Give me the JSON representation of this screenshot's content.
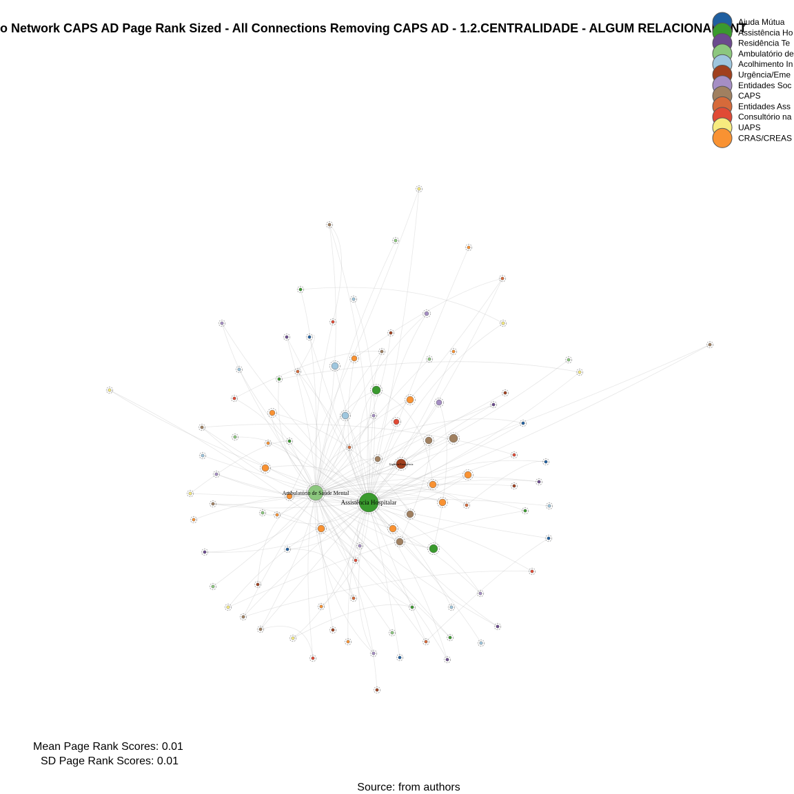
{
  "title": "o Network CAPS AD Page Rank Sized - All Connections Removing CAPS AD - 1.2.CENTRALIDADE - ALGUM RELACIONAMENT",
  "legend": [
    {
      "label": "Ajuda Mútua",
      "color": "#1f5fa0"
    },
    {
      "label": "Assistência Ho",
      "color": "#3a9a2e"
    },
    {
      "label": "Residência Te",
      "color": "#6b4a8e"
    },
    {
      "label": "Ambulatório de",
      "color": "#8cc77e"
    },
    {
      "label": "Acolhimento In",
      "color": "#9ec6de"
    },
    {
      "label": "Urgência/Eme",
      "color": "#a0401e"
    },
    {
      "label": "Entidades Soc",
      "color": "#a58ec4"
    },
    {
      "label": "CAPS",
      "color": "#a08060"
    },
    {
      "label": "Entidades Ass",
      "color": "#d66a3a"
    },
    {
      "label": "Consultório na",
      "color": "#e04a35"
    },
    {
      "label": "UAPS",
      "color": "#f7eb7f"
    },
    {
      "label": "CRAS/CREAS",
      "color": "#f99232"
    }
  ],
  "nodes": [
    {
      "label": "Ambulatório de Saúde Mental"
    },
    {
      "label": "Assistência Hospitalar"
    },
    {
      "label": "Urgência/Emergência"
    }
  ],
  "footer": {
    "mean": "Mean Page Rank Scores: 0.01",
    "sd": "SD Page Rank Scores: 0.01",
    "source": "Source: from authors"
  }
}
